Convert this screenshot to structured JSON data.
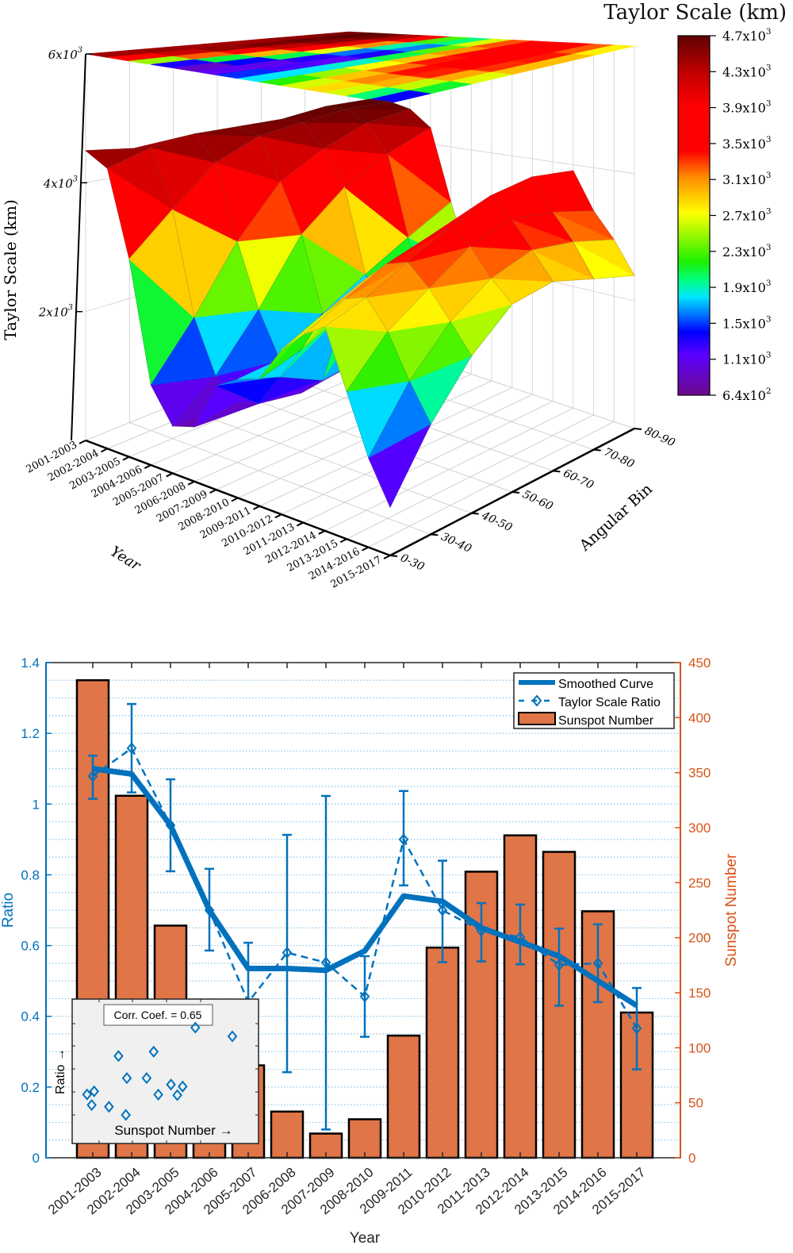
{
  "chart_data": [
    {
      "type": "surface",
      "title": "Taylor Scale (km)",
      "xlabel": "Year",
      "ylabel": "Angular Bin",
      "zlabel": "Taylor Scale (km)",
      "x_categories": [
        "2001-2003",
        "2002-2004",
        "2003-2005",
        "2004-2006",
        "2005-2007",
        "2006-2008",
        "2007-2009",
        "2008-2010",
        "2009-2011",
        "2010-2012",
        "2011-2013",
        "2012-2014",
        "2013-2015",
        "2014-2016",
        "2015-2017"
      ],
      "y_categories": [
        "0-30",
        "30-40",
        "40-50",
        "50-60",
        "60-70",
        "70-80",
        "80-90"
      ],
      "z_ticks": [
        "2x10^3",
        "4x10^3",
        "6x10^3"
      ],
      "zlim": [
        0,
        6000
      ],
      "colorbar": {
        "ticks": [
          "4.7x10^3",
          "4.3x10^3",
          "3.9x10^3",
          "3.5x10^3",
          "3.1x10^3",
          "2.7x10^3",
          "2.3x10^3",
          "1.9x10^3",
          "1.5x10^3",
          "1.1x10^3",
          "6.4x10^2"
        ],
        "range": [
          640,
          4700
        ],
        "colormap": "jet with purple low end"
      },
      "z_values_km": [
        [
          4500,
          4400,
          4300,
          4200,
          4300,
          4400,
          4500
        ],
        [
          4300,
          4500,
          4600,
          4600,
          4600,
          4700,
          4700
        ],
        [
          3000,
          3600,
          4200,
          4500,
          4600,
          4700,
          4700
        ],
        [
          1200,
          2000,
          3000,
          3800,
          4200,
          4500,
          4600
        ],
        [
          700,
          1200,
          2000,
          3000,
          3600,
          4000,
          4300
        ],
        [
          800,
          900,
          1300,
          1800,
          2200,
          2600,
          3000
        ],
        [
          1500,
          1000,
          900,
          1000,
          1200,
          1500,
          1900
        ],
        [
          1700,
          1500,
          1200,
          1300,
          1600,
          2000,
          2400
        ],
        [
          1800,
          2000,
          2300,
          2500,
          2700,
          2900,
          3100
        ],
        [
          2300,
          2600,
          2900,
          3100,
          3300,
          3400,
          3500
        ],
        [
          2600,
          2900,
          3200,
          3400,
          3600,
          3700,
          3800
        ],
        [
          2800,
          3000,
          3300,
          3600,
          3900,
          4000,
          3900
        ],
        [
          2000,
          2600,
          3000,
          3400,
          3600,
          3500,
          3300
        ],
        [
          1200,
          2000,
          2600,
          3000,
          3200,
          3100,
          2900
        ],
        [
          640,
          1500,
          2200,
          2700,
          2800,
          2600,
          2400
        ]
      ]
    },
    {
      "type": "bar+line",
      "categories": [
        "2001-2003",
        "2002-2004",
        "2003-2005",
        "2004-2006",
        "2005-2007",
        "2006-2008",
        "2007-2009",
        "2008-2010",
        "2009-2011",
        "2010-2012",
        "2011-2013",
        "2012-2014",
        "2013-2015",
        "2014-2016",
        "2015-2017"
      ],
      "xlabel": "Year",
      "ylabel_left": "Ratio",
      "ylabel_right": "Sunspot Number",
      "ylim_left": [
        0,
        1.4
      ],
      "ylim_right": [
        0,
        450
      ],
      "left_ticks": [
        "0",
        "0.2",
        "0.4",
        "0.6",
        "0.8",
        "1",
        "1.2",
        "1.4"
      ],
      "right_ticks": [
        "0",
        "50",
        "100",
        "150",
        "200",
        "250",
        "300",
        "350",
        "400",
        "450"
      ],
      "grid": "dotted horizontal",
      "legend_position": "top-right",
      "series": [
        {
          "name": "Smoothed Curve",
          "type": "line",
          "color": "#0072bd",
          "values": [
            1.1,
            1.085,
            0.94,
            0.7,
            0.535,
            0.535,
            0.53,
            0.585,
            0.74,
            0.725,
            0.65,
            0.61,
            0.57,
            0.5,
            0.43
          ]
        },
        {
          "name": "Taylor Scale Ratio",
          "type": "errorbar",
          "color": "#0072bd",
          "values": [
            1.079,
            1.158,
            0.94,
            0.7,
            0.44,
            0.58,
            0.552,
            0.456,
            0.9,
            0.7,
            0.642,
            0.624,
            0.545,
            0.55,
            0.366
          ],
          "upper": [
            1.137,
            1.283,
            1.07,
            0.817,
            0.608,
            0.913,
            1.023,
            0.57,
            1.037,
            0.84,
            0.72,
            0.716,
            0.648,
            0.66,
            0.48
          ],
          "lower": [
            1.015,
            1.033,
            0.81,
            0.586,
            0.31,
            0.242,
            0.08,
            0.342,
            0.77,
            0.553,
            0.555,
            0.547,
            0.43,
            0.44,
            0.25
          ]
        },
        {
          "name": "Sunspot Number",
          "type": "bar",
          "color": "#e07548",
          "axis": "right",
          "values": [
            434,
            329,
            211,
            135,
            84,
            42,
            22,
            35,
            111,
            191,
            260,
            293,
            278,
            224,
            132
          ]
        }
      ],
      "inset": {
        "annotation": "Corr. Coef. = 0.65",
        "xlabel": "Sunspot Number →",
        "ylabel": "Ratio →"
      }
    }
  ]
}
